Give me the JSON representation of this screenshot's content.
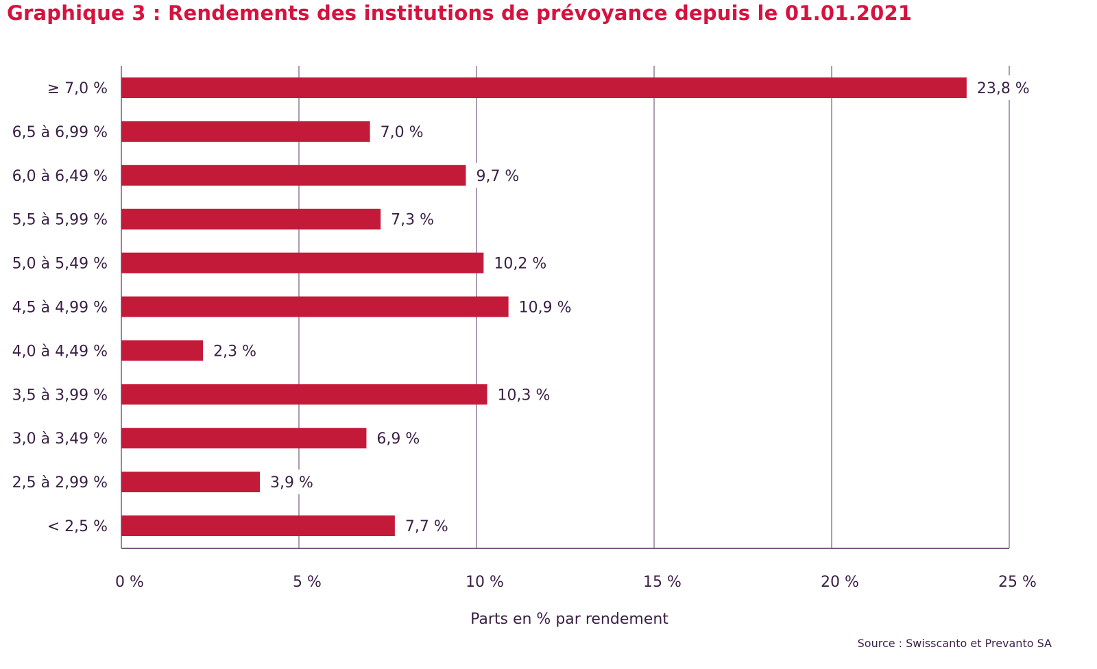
{
  "chart_data": {
    "type": "bar",
    "orientation": "horizontal",
    "title": "Graphique 3 : Rendements des institutions de prévoyance depuis le 01.01.2021",
    "categories": [
      "≥ 7,0 %",
      "6,5 à 6,99 %",
      "6,0 à 6,49 %",
      "5,5 à 5,99 %",
      "5,0 à 5,49 %",
      "4,5 à 4,99 %",
      "4,0 à 4,49 %",
      "3,5 à 3,99 %",
      "3,0 à 3,49 %",
      "2,5 à 2,99 %",
      "< 2,5 %"
    ],
    "values": [
      23.8,
      7.0,
      9.7,
      7.3,
      10.2,
      10.9,
      2.3,
      10.3,
      6.9,
      3.9,
      7.7
    ],
    "value_labels": [
      "23,8 %",
      "7,0 %",
      "9,7 %",
      "7,3 %",
      "10,2 %",
      "10,9 %",
      "2,3 %",
      "10,3 %",
      "6,9 %",
      "3,9 %",
      "7,7 %"
    ],
    "xlabel": "Parts en % par rendement",
    "ylabel": "",
    "xlim": [
      0,
      25
    ],
    "xticks": [
      0,
      5,
      10,
      15,
      20,
      25
    ],
    "xtick_labels": [
      "0 %",
      "5 %",
      "10 %",
      "15 %",
      "20 %",
      "25 %"
    ],
    "grid": true,
    "legend": "none",
    "bar_color": "#c41a3a",
    "source": "Source : Swisscanto et Prevanto SA"
  },
  "colors": {
    "title": "#d6123f",
    "bar": "#c41a3a",
    "text": "#3a1f45",
    "grid": "#5a3a66",
    "axis": "#7a5a86"
  }
}
